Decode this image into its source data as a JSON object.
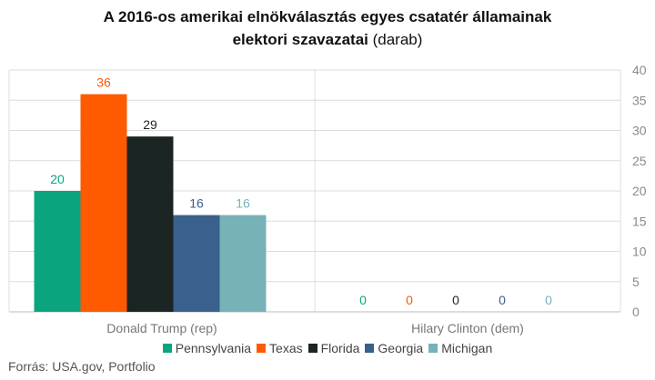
{
  "title": {
    "line1": "A 2016-os amerikai elnökválasztás egyes csatatér államainak",
    "line2_bold": "elektori szavazatai",
    "line2_unit": "(darab)"
  },
  "source": "Forrás: USA.gov, Portfolio",
  "chart_data": {
    "type": "bar",
    "title": "A 2016-os amerikai elnökválasztás egyes csatatér államainak elektori szavazatai (darab)",
    "categories": [
      "Donald Trump (rep)",
      "Hilary Clinton (dem)"
    ],
    "series": [
      {
        "name": "Pennsylvania",
        "color": "#0aa57f",
        "values": [
          20,
          0
        ]
      },
      {
        "name": "Texas",
        "color": "#ff5a00",
        "values": [
          36,
          0
        ]
      },
      {
        "name": "Florida",
        "color": "#1b2523",
        "values": [
          29,
          0
        ]
      },
      {
        "name": "Georgia",
        "color": "#3a608d",
        "values": [
          16,
          0
        ]
      },
      {
        "name": "Michigan",
        "color": "#76b2b7",
        "values": [
          16,
          0
        ]
      }
    ],
    "ylim": [
      0,
      40
    ],
    "yticks": [
      0,
      5,
      10,
      15,
      20,
      25,
      30,
      35,
      40
    ],
    "y_axis_side": "right",
    "grid": true,
    "legend_position": "bottom",
    "data_labels": true
  }
}
